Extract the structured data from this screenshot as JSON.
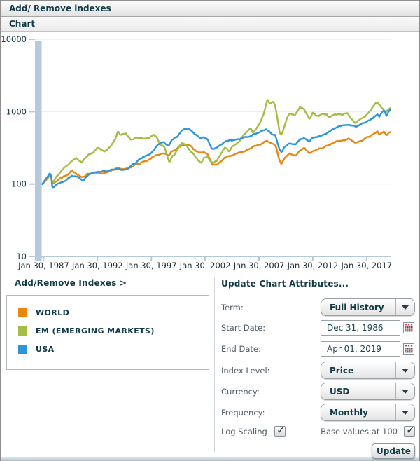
{
  "header": {
    "title": "Add/ Remove indexes",
    "tab": "Chart"
  },
  "chart_data": {
    "type": "line",
    "x_axis": {
      "tick_labels": [
        "Jan 30, 1987",
        "Jan 30, 1992",
        "Jan 30, 1997",
        "Jan 30, 2002",
        "Jan 30, 2007",
        "Jan 30, 2012",
        "Jan 30, 2017"
      ],
      "start": 1986.96,
      "end": 2019.25
    },
    "y_axis": {
      "scale": "log",
      "ticks": [
        10,
        100,
        1000,
        10000
      ],
      "range": [
        10,
        10000
      ]
    },
    "series": [
      {
        "name": "WORLD",
        "color": "#e8860d",
        "points": [
          [
            1986.96,
            100
          ],
          [
            1987.2,
            109
          ],
          [
            1987.65,
            131
          ],
          [
            1987.78,
            126
          ],
          [
            1987.88,
            99
          ],
          [
            1988.1,
            104
          ],
          [
            1988.6,
            117
          ],
          [
            1989.1,
            130
          ],
          [
            1989.7,
            151
          ],
          [
            1990.0,
            146
          ],
          [
            1990.45,
            128
          ],
          [
            1990.75,
            122
          ],
          [
            1991.2,
            141
          ],
          [
            1991.9,
            146
          ],
          [
            1992.6,
            139
          ],
          [
            1993.0,
            149
          ],
          [
            1993.9,
            168
          ],
          [
            1994.3,
            160
          ],
          [
            1995.0,
            169
          ],
          [
            1995.9,
            191
          ],
          [
            1996.9,
            216
          ],
          [
            1997.6,
            252
          ],
          [
            1998.2,
            272
          ],
          [
            1998.7,
            246
          ],
          [
            1999.0,
            281
          ],
          [
            1999.9,
            342
          ],
          [
            2000.2,
            352
          ],
          [
            2000.7,
            341
          ],
          [
            2001.1,
            301
          ],
          [
            2001.7,
            272
          ],
          [
            2001.95,
            281
          ],
          [
            2002.3,
            262
          ],
          [
            2002.75,
            187
          ],
          [
            2003.2,
            184
          ],
          [
            2003.9,
            232
          ],
          [
            2004.9,
            257
          ],
          [
            2005.9,
            292
          ],
          [
            2006.9,
            342
          ],
          [
            2007.8,
            392
          ],
          [
            2008.0,
            372
          ],
          [
            2008.4,
            355
          ],
          [
            2008.65,
            330
          ],
          [
            2008.9,
            235
          ],
          [
            2009.15,
            187
          ],
          [
            2009.5,
            230
          ],
          [
            2009.9,
            262
          ],
          [
            2010.5,
            251
          ],
          [
            2010.9,
            291
          ],
          [
            2011.3,
            312
          ],
          [
            2011.75,
            262
          ],
          [
            2012.0,
            281
          ],
          [
            2012.9,
            312
          ],
          [
            2013.9,
            372
          ],
          [
            2014.9,
            402
          ],
          [
            2015.4,
            422
          ],
          [
            2015.7,
            392
          ],
          [
            2016.1,
            372
          ],
          [
            2016.9,
            422
          ],
          [
            2017.9,
            502
          ],
          [
            2018.07,
            532
          ],
          [
            2018.25,
            496
          ],
          [
            2018.7,
            522
          ],
          [
            2018.95,
            452
          ],
          [
            2019.1,
            502
          ],
          [
            2019.25,
            522
          ]
        ]
      },
      {
        "name": "EM (EMERGING MARKETS)",
        "color": "#a3bd45",
        "points": [
          [
            1986.96,
            100
          ],
          [
            1987.3,
            116
          ],
          [
            1987.7,
            136
          ],
          [
            1987.9,
            101
          ],
          [
            1988.3,
            131
          ],
          [
            1988.9,
            161
          ],
          [
            1989.6,
            201
          ],
          [
            1990.1,
            236
          ],
          [
            1990.6,
            196
          ],
          [
            1991.0,
            231
          ],
          [
            1991.5,
            266
          ],
          [
            1992.1,
            311
          ],
          [
            1992.7,
            281
          ],
          [
            1993.2,
            321
          ],
          [
            1993.7,
            401
          ],
          [
            1993.98,
            531
          ],
          [
            1994.2,
            481
          ],
          [
            1994.7,
            511
          ],
          [
            1995.2,
            401
          ],
          [
            1995.7,
            431
          ],
          [
            1996.2,
            441
          ],
          [
            1996.9,
            431
          ],
          [
            1997.3,
            471
          ],
          [
            1997.6,
            441
          ],
          [
            1997.9,
            341
          ],
          [
            1998.3,
            331
          ],
          [
            1998.75,
            196
          ],
          [
            1999.0,
            231
          ],
          [
            1999.5,
            291
          ],
          [
            1999.95,
            371
          ],
          [
            2000.2,
            356
          ],
          [
            2000.9,
            271
          ],
          [
            2001.2,
            241
          ],
          [
            2001.7,
            186
          ],
          [
            2001.95,
            221
          ],
          [
            2002.3,
            236
          ],
          [
            2002.75,
            201
          ],
          [
            2003.2,
            211
          ],
          [
            2003.9,
            311
          ],
          [
            2004.3,
            291
          ],
          [
            2004.9,
            351
          ],
          [
            2005.4,
            421
          ],
          [
            2005.9,
            501
          ],
          [
            2006.3,
            591
          ],
          [
            2006.5,
            521
          ],
          [
            2006.9,
            621
          ],
          [
            2007.2,
            701
          ],
          [
            2007.5,
            901
          ],
          [
            2007.85,
            1471
          ],
          [
            2008.1,
            1251
          ],
          [
            2008.45,
            1381
          ],
          [
            2008.6,
            1201
          ],
          [
            2008.8,
            801
          ],
          [
            2009.0,
            521
          ],
          [
            2009.15,
            481
          ],
          [
            2009.4,
            601
          ],
          [
            2009.7,
            801
          ],
          [
            2009.95,
            951
          ],
          [
            2010.4,
            851
          ],
          [
            2010.9,
            1151
          ],
          [
            2011.3,
            1081
          ],
          [
            2011.75,
            771
          ],
          [
            2012.1,
            951
          ],
          [
            2012.4,
            851
          ],
          [
            2012.9,
            951
          ],
          [
            2013.4,
            901
          ],
          [
            2013.6,
            821
          ],
          [
            2013.9,
            901
          ],
          [
            2014.6,
            961
          ],
          [
            2014.9,
            891
          ],
          [
            2015.3,
            951
          ],
          [
            2015.6,
            801
          ],
          [
            2015.9,
            731
          ],
          [
            2016.05,
            691
          ],
          [
            2016.5,
            801
          ],
          [
            2016.9,
            851
          ],
          [
            2017.5,
            1051
          ],
          [
            2017.95,
            1301
          ],
          [
            2018.07,
            1341
          ],
          [
            2018.3,
            1201
          ],
          [
            2018.6,
            1101
          ],
          [
            2018.8,
            971
          ],
          [
            2019.0,
            1051
          ],
          [
            2019.25,
            1121
          ]
        ]
      },
      {
        "name": "USA",
        "color": "#2d96d8",
        "points": [
          [
            1986.96,
            100
          ],
          [
            1987.2,
            112
          ],
          [
            1987.65,
            137
          ],
          [
            1987.78,
            131
          ],
          [
            1987.9,
            84
          ],
          [
            1988.1,
            92
          ],
          [
            1988.6,
            101
          ],
          [
            1989.1,
            109
          ],
          [
            1989.7,
            131
          ],
          [
            1990.1,
            126
          ],
          [
            1990.75,
            111
          ],
          [
            1991.2,
            133
          ],
          [
            1991.9,
            143
          ],
          [
            1992.9,
            153
          ],
          [
            1993.9,
            161
          ],
          [
            1994.3,
            156
          ],
          [
            1994.9,
            163
          ],
          [
            1995.9,
            216
          ],
          [
            1996.9,
            261
          ],
          [
            1997.7,
            341
          ],
          [
            1998.2,
            381
          ],
          [
            1998.7,
            346
          ],
          [
            1998.95,
            411
          ],
          [
            1999.5,
            441
          ],
          [
            1999.95,
            561
          ],
          [
            2000.2,
            591
          ],
          [
            2000.6,
            571
          ],
          [
            2000.95,
            511
          ],
          [
            2001.2,
            471
          ],
          [
            2001.7,
            431
          ],
          [
            2001.95,
            451
          ],
          [
            2002.3,
            421
          ],
          [
            2002.75,
            301
          ],
          [
            2003.1,
            311
          ],
          [
            2003.9,
            381
          ],
          [
            2004.9,
            411
          ],
          [
            2005.9,
            441
          ],
          [
            2006.9,
            501
          ],
          [
            2007.75,
            571
          ],
          [
            2008.0,
            531
          ],
          [
            2008.6,
            471
          ],
          [
            2008.9,
            321
          ],
          [
            2009.15,
            271
          ],
          [
            2009.5,
            330
          ],
          [
            2009.9,
            361
          ],
          [
            2010.5,
            351
          ],
          [
            2010.9,
            411
          ],
          [
            2011.3,
            441
          ],
          [
            2011.75,
            381
          ],
          [
            2012.0,
            421
          ],
          [
            2012.9,
            461
          ],
          [
            2013.9,
            581
          ],
          [
            2014.9,
            651
          ],
          [
            2015.5,
            671
          ],
          [
            2015.9,
            641
          ],
          [
            2016.05,
            611
          ],
          [
            2016.9,
            701
          ],
          [
            2017.9,
            891
          ],
          [
            2018.1,
            941
          ],
          [
            2018.25,
            871
          ],
          [
            2018.7,
            1041
          ],
          [
            2018.95,
            851
          ],
          [
            2019.1,
            991
          ],
          [
            2019.25,
            1061
          ]
        ]
      }
    ]
  },
  "legend": {
    "link_label": "Add/Remove Indexes >",
    "items": [
      {
        "label": "WORLD",
        "color": "#e8860d"
      },
      {
        "label": "EM (EMERGING MARKETS)",
        "color": "#a3bd45"
      },
      {
        "label": "USA",
        "color": "#2d96d8"
      }
    ]
  },
  "controls": {
    "heading": "Update Chart Attributes...",
    "term": {
      "label": "Term:",
      "value": "Full History"
    },
    "start_date": {
      "label": "Start Date:",
      "value": "Dec 31, 1986"
    },
    "end_date": {
      "label": "End Date:",
      "value": "Apr 01, 2019"
    },
    "index_level": {
      "label": "Index Level:",
      "value": "Price"
    },
    "currency": {
      "label": "Currency:",
      "value": "USD"
    },
    "frequency": {
      "label": "Frequency:",
      "value": "Monthly"
    },
    "log_scaling": {
      "label": "Log Scaling",
      "checked": true
    },
    "base_values": {
      "label": "Base values at 100",
      "checked": true
    },
    "update_button": "Update"
  }
}
